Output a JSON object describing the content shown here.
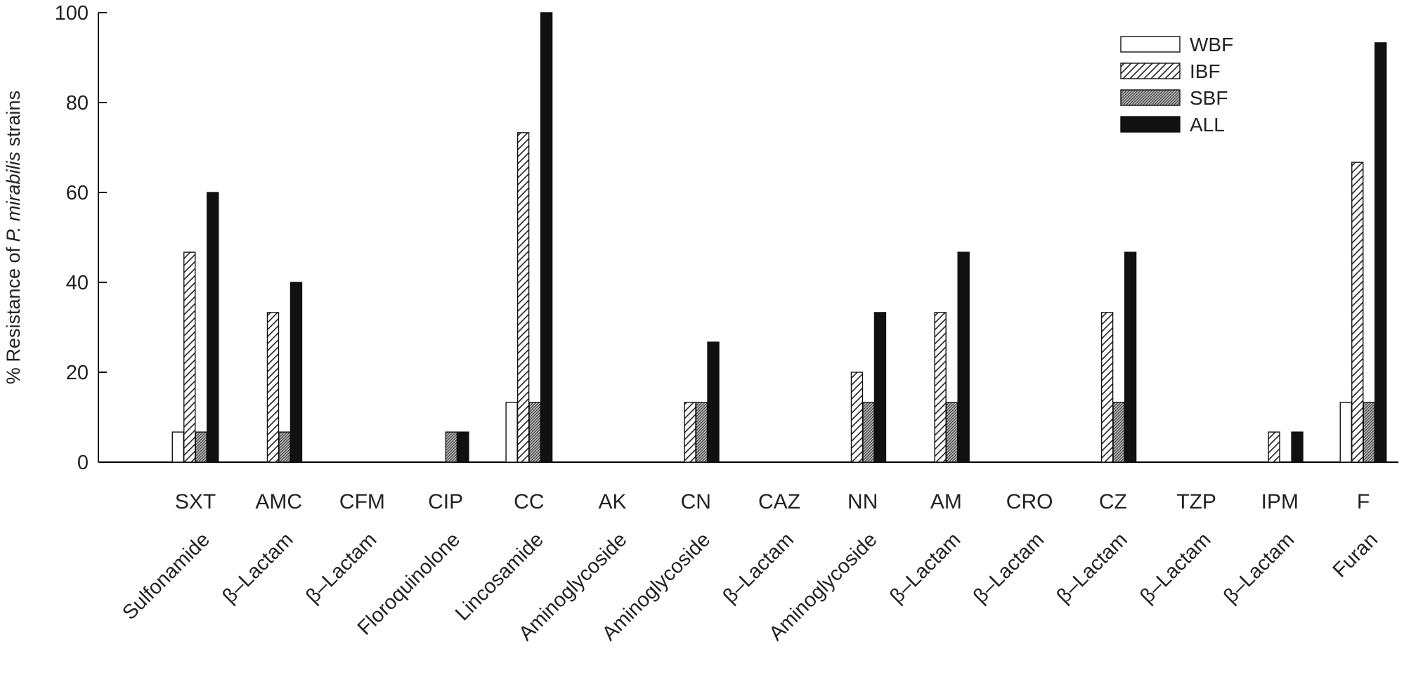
{
  "chart_data": {
    "type": "bar",
    "title": "",
    "xlabel": "",
    "ylabel": {
      "prefix": "% Resistance of ",
      "italic": "P. mirabilis",
      "suffix": " strains"
    },
    "ylim": [
      0,
      100
    ],
    "yticks": [
      0,
      20,
      40,
      60,
      80,
      100
    ],
    "grid": false,
    "legend_position": "top-right",
    "categories": [
      "SXT",
      "AMC",
      "CFM",
      "CIP",
      "CC",
      "AK",
      "CN",
      "CAZ",
      "NN",
      "AM",
      "CRO",
      "CZ",
      "TZP",
      "IPM",
      "F"
    ],
    "classes": [
      "Sulfonamide",
      "β–Lactam",
      "β–Lactam",
      "Floroquinolone",
      "Lincosamide",
      "Aminoglycoside",
      "Aminoglycoside",
      "β–Lactam",
      "Aminoglycoside",
      "β–Lactam",
      "β–Lactam",
      "β–Lactam",
      "β–Lactam",
      "β–Lactam",
      "Furan"
    ],
    "series": [
      {
        "name": "WBF",
        "pattern": "open",
        "values": [
          6.7,
          0,
          0,
          0,
          13.3,
          0,
          0,
          0,
          0,
          0,
          0,
          0,
          0,
          0,
          13.3
        ]
      },
      {
        "name": "IBF",
        "pattern": "diagonal",
        "values": [
          46.7,
          33.3,
          0,
          0,
          73.3,
          0,
          13.3,
          0,
          20,
          33.3,
          0,
          33.3,
          0,
          6.7,
          66.7
        ]
      },
      {
        "name": "SBF",
        "pattern": "crosshatch",
        "values": [
          6.7,
          6.7,
          0,
          6.7,
          13.3,
          0,
          13.3,
          0,
          13.3,
          13.3,
          0,
          13.3,
          0,
          0,
          13.3
        ]
      },
      {
        "name": "ALL",
        "pattern": "solid",
        "values": [
          60,
          40,
          0,
          6.7,
          100,
          0,
          26.7,
          0,
          33.3,
          46.7,
          0,
          46.7,
          0,
          6.7,
          93.3
        ]
      }
    ],
    "colors": {
      "axis": "#000000",
      "solid": "#111111",
      "text": "#222222"
    }
  }
}
